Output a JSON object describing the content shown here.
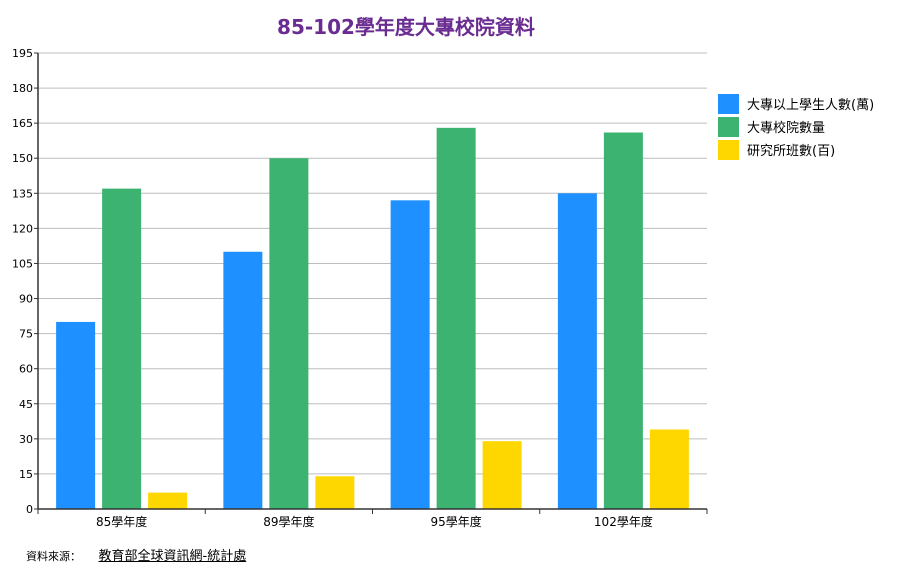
{
  "chart_data": {
    "type": "bar",
    "title": "85-102學年度大專校院資料",
    "categories": [
      "85學年度",
      "89學年度",
      "95學年度",
      "102學年度"
    ],
    "series": [
      {
        "name": "大專以上學生人數(萬)",
        "values": [
          80,
          110,
          132,
          135
        ],
        "color": "#1E90FF"
      },
      {
        "name": "大專校院數量",
        "values": [
          137,
          150,
          163,
          161
        ],
        "color": "#3CB371"
      },
      {
        "name": "研究所班數(百)",
        "values": [
          7,
          14,
          29,
          34
        ],
        "color": "#FFD700"
      }
    ],
    "xlabel": "",
    "ylabel": "",
    "ylim": [
      0,
      195
    ],
    "yticks": [
      0,
      15,
      30,
      45,
      60,
      75,
      90,
      105,
      120,
      135,
      150,
      165,
      180,
      195
    ],
    "grid": true,
    "legend": "right",
    "title_color": "#6A2C91"
  },
  "footer": {
    "source_label": "資料來源：",
    "source_link": "教育部全球資訊網-統計處"
  }
}
